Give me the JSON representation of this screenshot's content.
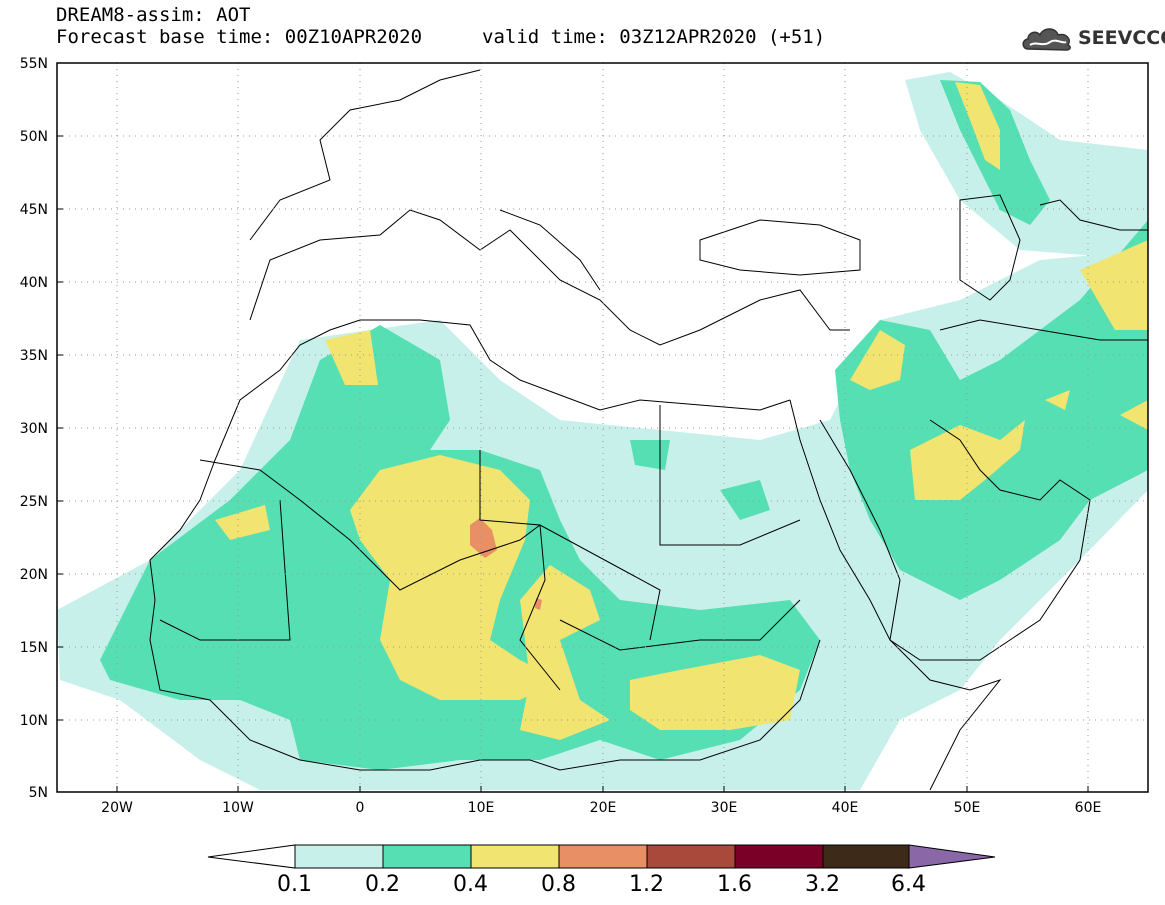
{
  "header": {
    "line1": "DREAM8-assim: AOT",
    "line2": "Forecast base time: 00Z10APR2020",
    "line3": "valid time: 03Z12APR2020 (+51)"
  },
  "logo": {
    "text": "SEEVCCC",
    "icon": "cloud-icon"
  },
  "map": {
    "lon_range": [
      -25,
      65
    ],
    "lat_range": [
      5,
      55
    ],
    "lat_labels": [
      "55N",
      "50N",
      "45N",
      "40N",
      "35N",
      "30N",
      "25N",
      "20N",
      "15N",
      "10N",
      "5N"
    ],
    "lon_labels": [
      "20W",
      "10W",
      "0",
      "10E",
      "20E",
      "30E",
      "40E",
      "50E",
      "60E"
    ],
    "grid": "dotted"
  },
  "colorbar": {
    "labels": [
      "0.1",
      "0.2",
      "0.4",
      "0.8",
      "1.2",
      "1.6",
      "3.2",
      "6.4"
    ],
    "colors": [
      "#ffffff",
      "#c8f0eb",
      "#55dfb3",
      "#f1e470",
      "#e98f65",
      "#a8493c",
      "#7a0028",
      "#3d2a18",
      "#8a68a8"
    ]
  },
  "palette": {
    "c01": "#c8f0eb",
    "c02": "#55dfb3",
    "c04": "#f1e470",
    "c08": "#e98f65"
  }
}
